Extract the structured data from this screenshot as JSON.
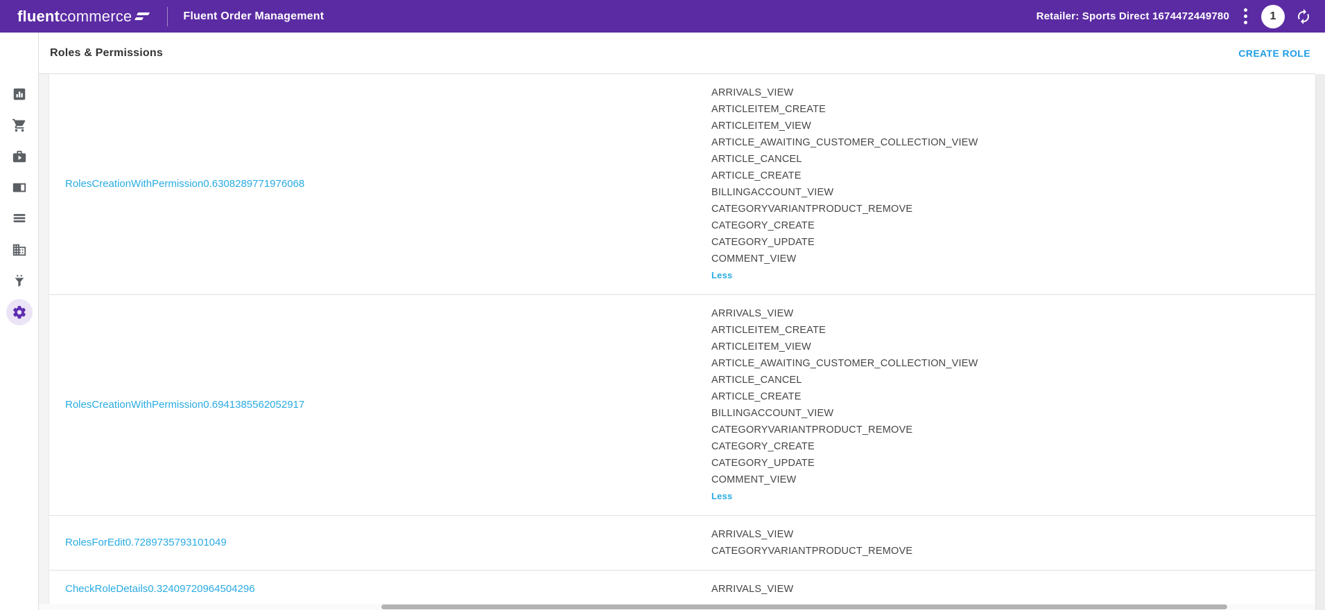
{
  "topbar": {
    "logo_bold": "fluent",
    "logo_light": "commerce",
    "app_title": "Fluent Order Management",
    "retailer_label": "Retailer: Sports Direct 1674472449780",
    "badge_count": "1"
  },
  "header": {
    "title": "Roles & Permissions",
    "create_role_label": "CREATE ROLE"
  },
  "sidebar": {
    "items": [
      {
        "icon": "bar-chart-icon",
        "active": false
      },
      {
        "icon": "cart-icon",
        "active": false
      },
      {
        "icon": "briefcase-play-icon",
        "active": false
      },
      {
        "icon": "panel-icon",
        "active": false
      },
      {
        "icon": "list-icon",
        "active": false
      },
      {
        "icon": "building-icon",
        "active": false
      },
      {
        "icon": "funnel-icon",
        "active": false
      },
      {
        "icon": "gear-icon",
        "active": true
      }
    ]
  },
  "table": {
    "rows": [
      {
        "name": "RolesCreationWithPermission0.6308289771976068",
        "permissions": [
          "ARRIVALS_VIEW",
          "ARTICLEITEM_CREATE",
          "ARTICLEITEM_VIEW",
          "ARTICLE_AWAITING_CUSTOMER_COLLECTION_VIEW",
          "ARTICLE_CANCEL",
          "ARTICLE_CREATE",
          "BILLINGACCOUNT_VIEW",
          "CATEGORYVARIANTPRODUCT_REMOVE",
          "CATEGORY_CREATE",
          "CATEGORY_UPDATE",
          "COMMENT_VIEW"
        ],
        "toggle": "Less"
      },
      {
        "name": "RolesCreationWithPermission0.6941385562052917",
        "permissions": [
          "ARRIVALS_VIEW",
          "ARTICLEITEM_CREATE",
          "ARTICLEITEM_VIEW",
          "ARTICLE_AWAITING_CUSTOMER_COLLECTION_VIEW",
          "ARTICLE_CANCEL",
          "ARTICLE_CREATE",
          "BILLINGACCOUNT_VIEW",
          "CATEGORYVARIANTPRODUCT_REMOVE",
          "CATEGORY_CREATE",
          "CATEGORY_UPDATE",
          "COMMENT_VIEW"
        ],
        "toggle": "Less"
      },
      {
        "name": "RolesForEdit0.7289735793101049",
        "permissions": [
          "ARRIVALS_VIEW",
          "CATEGORYVARIANTPRODUCT_REMOVE"
        ],
        "toggle": null
      },
      {
        "name": "CheckRoleDetails0.32409720964504296",
        "permissions": [
          "ARRIVALS_VIEW"
        ],
        "toggle": null
      }
    ]
  },
  "colors": {
    "brand_purple": "#5b2ba3",
    "accent_blue": "#29abe2",
    "create_role_blue": "#1e9ce4",
    "active_icon_purple": "#5e2cb0",
    "text_dark": "#454545"
  }
}
